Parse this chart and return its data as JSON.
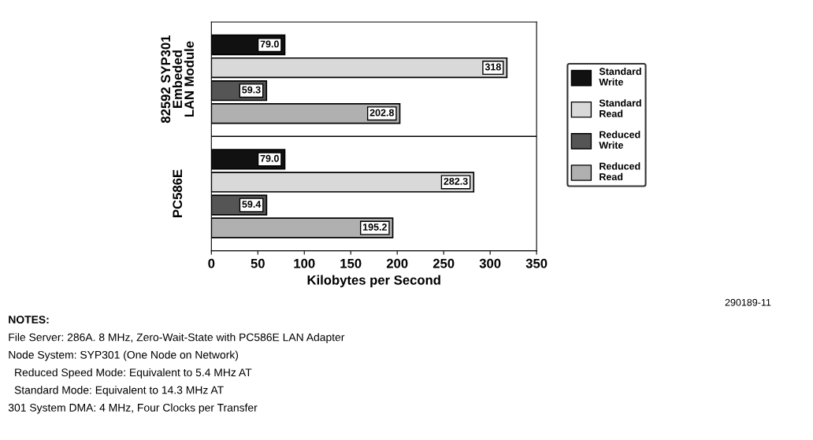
{
  "chart_data": {
    "type": "bar",
    "orientation": "horizontal",
    "categories": [
      "82592 SYP301\nEmbeded\nLAN Module",
      "PC586E"
    ],
    "series": [
      {
        "name": "Standard Write",
        "color": "#111111",
        "values": [
          79.0,
          79.0
        ],
        "value_labels": [
          "79.0",
          "79.0"
        ]
      },
      {
        "name": "Standard Read",
        "color": "#d9d9d9",
        "values": [
          318,
          282.3
        ],
        "value_labels": [
          "318",
          "282.3"
        ]
      },
      {
        "name": "Reduced Write",
        "color": "#555555",
        "values": [
          59.3,
          59.4
        ],
        "value_labels": [
          "59.3",
          "59.4"
        ]
      },
      {
        "name": "Reduced Read",
        "color": "#b0b0b0",
        "values": [
          202.8,
          195.2
        ],
        "value_labels": [
          "202.8",
          "195.2"
        ]
      }
    ],
    "xlabel": "Kilobytes per Second",
    "xlim": [
      0,
      350
    ],
    "xticks": [
      0,
      50,
      100,
      150,
      200,
      250,
      300,
      350
    ],
    "grid": false,
    "legend": "right",
    "annotations": [
      "290189-11",
      "NOTES:",
      "File Server: 286A. 8 MHz, Zero-Wait-State with PC586E LAN Adapter",
      "Node System: SYP301 (One Node on Network)",
      "  Reduced Speed Mode: Equivalent to 5.4 MHz AT",
      "  Standard Mode: Equivalent to 14.3 MHz AT",
      "301 System DMA: 4 MHz, Four Clocks per Transfer"
    ]
  }
}
